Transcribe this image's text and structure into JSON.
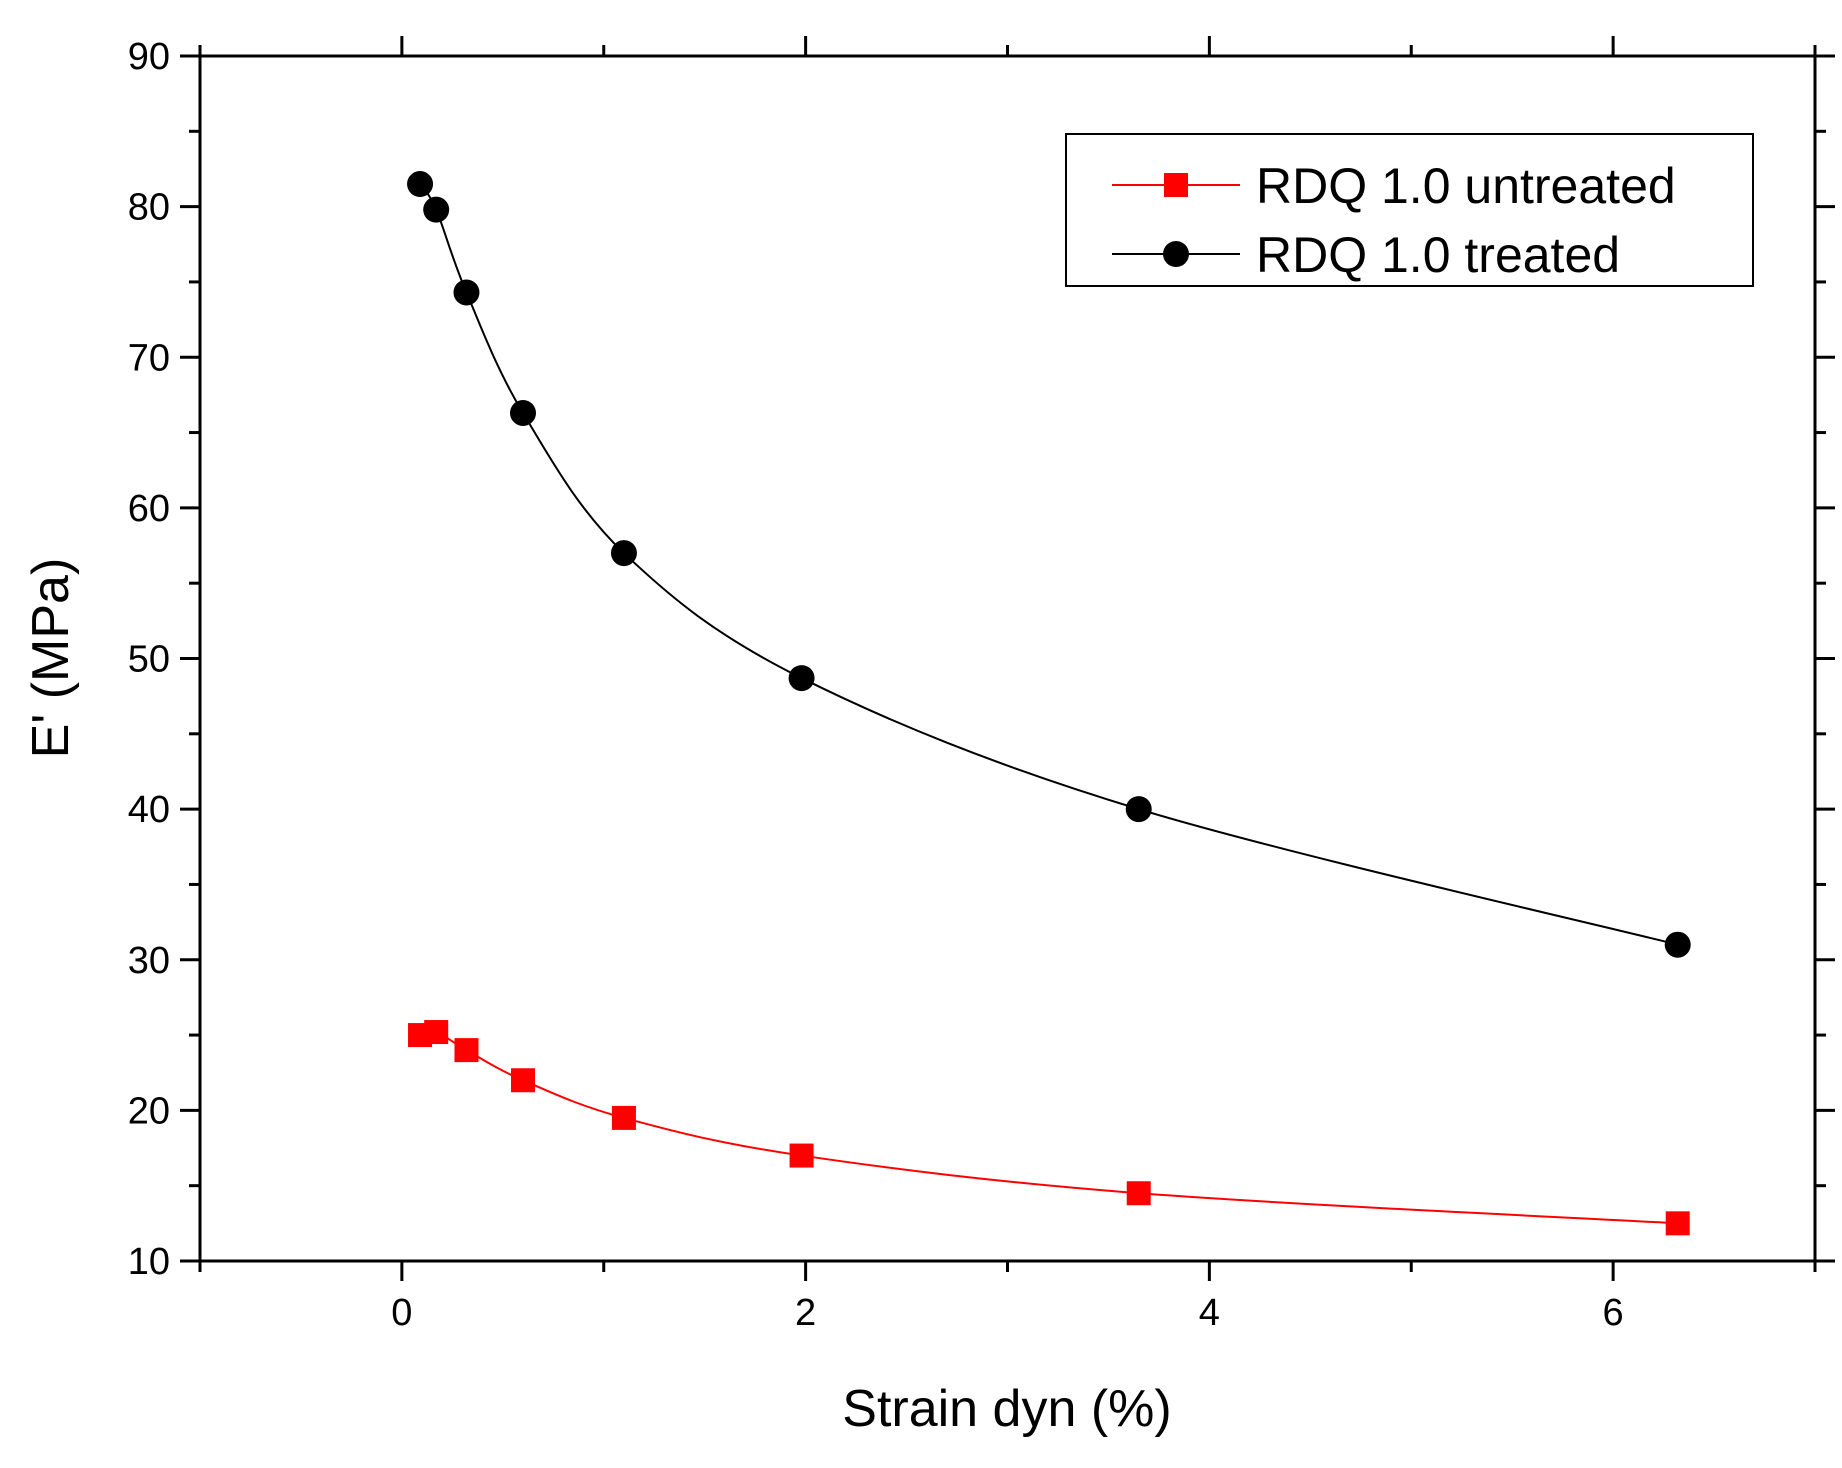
{
  "chart_data": {
    "type": "line",
    "title": "",
    "xlabel": "Strain dyn (%)",
    "ylabel": "E' (MPa)",
    "xlim": [
      -1,
      7
    ],
    "ylim": [
      10,
      90
    ],
    "x_ticks": [
      0,
      2,
      4,
      6
    ],
    "y_ticks": [
      10,
      20,
      30,
      40,
      50,
      60,
      70,
      80,
      90
    ],
    "grid": false,
    "legend_position": "top-right",
    "series": [
      {
        "name": "RDQ 1.0 untreated",
        "color": "#ff0000",
        "marker": "square",
        "x": [
          0.09,
          0.17,
          0.32,
          0.6,
          1.1,
          1.98,
          3.65,
          6.32
        ],
        "y": [
          25.0,
          25.2,
          24.0,
          22.0,
          19.5,
          17.0,
          14.5,
          12.5
        ]
      },
      {
        "name": "RDQ 1.0 treated",
        "color": "#000000",
        "marker": "circle",
        "x": [
          0.09,
          0.17,
          0.32,
          0.6,
          1.1,
          1.98,
          3.65,
          6.32
        ],
        "y": [
          81.5,
          79.8,
          74.3,
          66.3,
          57.0,
          48.7,
          40.0,
          31.0
        ]
      }
    ]
  }
}
